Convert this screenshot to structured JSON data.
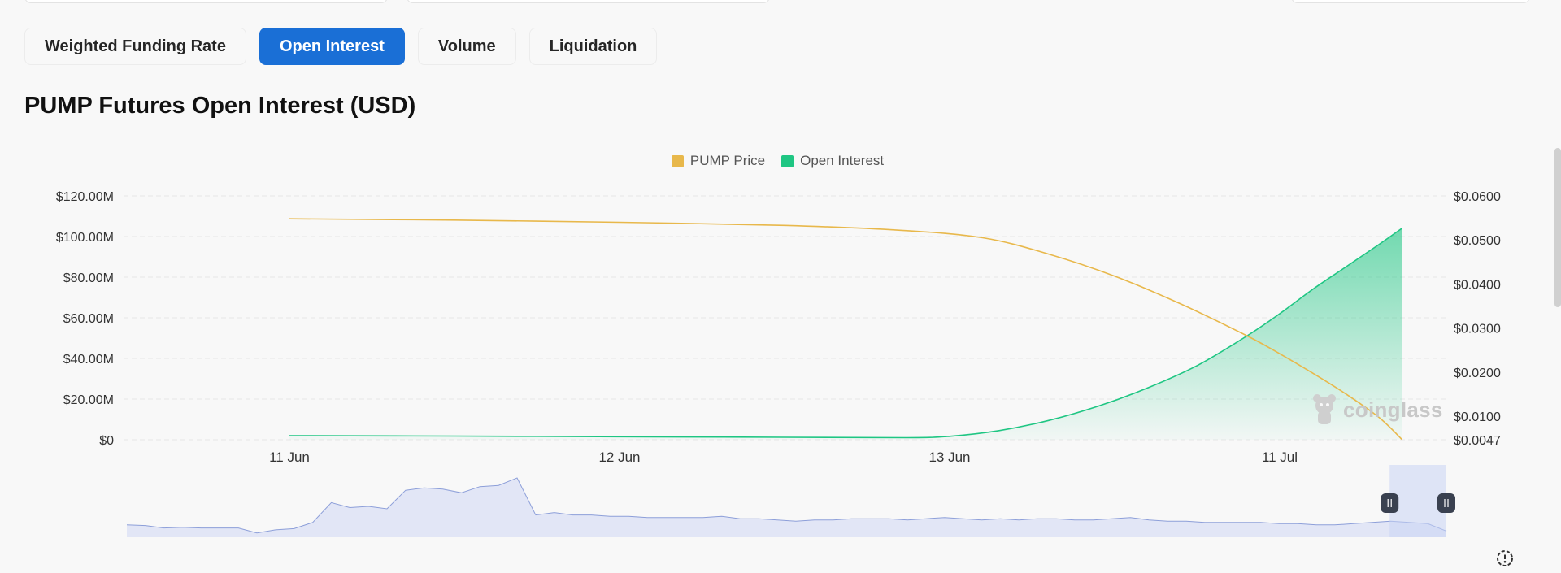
{
  "tabs": [
    {
      "label": "Weighted Funding Rate",
      "active": false
    },
    {
      "label": "Open Interest",
      "active": true
    },
    {
      "label": "Volume",
      "active": false
    },
    {
      "label": "Liquidation",
      "active": false
    }
  ],
  "page_title": "PUMP Futures Open Interest (USD)",
  "legend": [
    {
      "label": "PUMP Price",
      "color": "#e8b84b"
    },
    {
      "label": "Open Interest",
      "color": "#1fc683"
    }
  ],
  "watermark": "coinglass",
  "icons": {
    "settings": "settings-gear-icon",
    "mascot": "coinglass-mascot-icon"
  },
  "chart_data": {
    "type": "line",
    "categories": [
      "11 Jun",
      "12 Jun",
      "13 Jun",
      "11 Jul"
    ],
    "series": [
      {
        "name": "Open Interest",
        "axis": "left",
        "type": "area",
        "color": "#1fc683",
        "points": [
          [
            0,
            2.0
          ],
          [
            0.5,
            1.8
          ],
          [
            1.0,
            1.5
          ],
          [
            1.5,
            1.2
          ],
          [
            1.87,
            1.0
          ],
          [
            2.0,
            1.7
          ],
          [
            2.15,
            4.5
          ],
          [
            2.3,
            9.5
          ],
          [
            2.45,
            16.5
          ],
          [
            2.6,
            25.5
          ],
          [
            2.75,
            36.5
          ],
          [
            2.9,
            51.0
          ],
          [
            3.0,
            62.0
          ],
          [
            3.1,
            74.0
          ],
          [
            3.2,
            85.0
          ],
          [
            3.3,
            96.0
          ],
          [
            3.37,
            104.0
          ]
        ]
      },
      {
        "name": "PUMP Price",
        "axis": "right",
        "type": "line",
        "color": "#e8b84b",
        "points": [
          [
            0,
            0.0548
          ],
          [
            0.5,
            0.0545
          ],
          [
            1.0,
            0.054
          ],
          [
            1.5,
            0.0533
          ],
          [
            1.85,
            0.0522
          ],
          [
            2.1,
            0.0505
          ],
          [
            2.3,
            0.0468
          ],
          [
            2.5,
            0.0418
          ],
          [
            2.7,
            0.0355
          ],
          [
            2.9,
            0.0283
          ],
          [
            3.0,
            0.0242
          ],
          [
            3.1,
            0.0198
          ],
          [
            3.2,
            0.0151
          ],
          [
            3.3,
            0.0098
          ],
          [
            3.37,
            0.0048
          ]
        ]
      }
    ],
    "y_left": {
      "ticks": [
        "$0",
        "$20.00M",
        "$40.00M",
        "$60.00M",
        "$80.00M",
        "$100.00M",
        "$120.00M"
      ],
      "range": [
        0,
        120
      ]
    },
    "y_right": {
      "ticks": [
        "$0.0047",
        "$0.0100",
        "$0.0200",
        "$0.0300",
        "$0.0400",
        "$0.0500",
        "$0.0600"
      ],
      "range": [
        0.0047,
        0.06
      ]
    },
    "grid": true,
    "legend_position": "top-center",
    "navigator": {
      "values": [
        10,
        9.5,
        7.5,
        8,
        7.5,
        7.5,
        7.5,
        3.5,
        6,
        7,
        12,
        28,
        24,
        25,
        23,
        38,
        40,
        39,
        36,
        41,
        42,
        48,
        18,
        20,
        18,
        18,
        17,
        17,
        16,
        16,
        16,
        16,
        17,
        15,
        15,
        14,
        13,
        14,
        14,
        15,
        15,
        15,
        14,
        15,
        16,
        15,
        14,
        15,
        14,
        15,
        15,
        14,
        14,
        15,
        16,
        14,
        13,
        13,
        12,
        12,
        12,
        12,
        11,
        11,
        10,
        10,
        11,
        12,
        13,
        12,
        11,
        5
      ],
      "selection": [
        0.957,
        1.0
      ]
    }
  }
}
